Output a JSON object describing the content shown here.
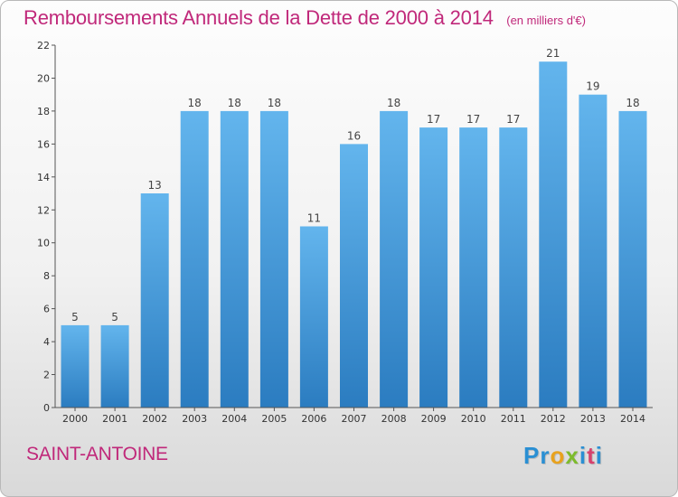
{
  "header": {
    "title": "Remboursements Annuels de la Dette de 2000 à 2014",
    "unit": "(en milliers d'€)"
  },
  "footer": {
    "location": "SAINT-ANTOINE",
    "logo_letters": [
      {
        "char": "P",
        "color": "#2a8fd3"
      },
      {
        "char": "r",
        "color": "#2a8fd3"
      },
      {
        "char": "o",
        "color": "#e8a21e"
      },
      {
        "char": "x",
        "color": "#7dbb2c"
      },
      {
        "char": "i",
        "color": "#2a8fd3"
      },
      {
        "char": "t",
        "color": "#d6426e"
      },
      {
        "char": "i",
        "color": "#2a8fd3"
      }
    ]
  },
  "colors": {
    "accent": "#c0287a",
    "bar_top": "#63b5ed",
    "bar_bottom": "#2b7cc0",
    "axis": "#555555"
  },
  "chart_data": {
    "type": "bar",
    "title": "Remboursements Annuels de la Dette de 2000 à 2014",
    "categories": [
      "2000",
      "2001",
      "2002",
      "2003",
      "2004",
      "2005",
      "2006",
      "2007",
      "2008",
      "2009",
      "2010",
      "2011",
      "2012",
      "2013",
      "2014"
    ],
    "values": [
      5,
      5,
      13,
      18,
      18,
      18,
      11,
      16,
      18,
      17,
      17,
      17,
      21,
      19,
      18
    ],
    "ylim": [
      0,
      22
    ],
    "yticks": [
      0,
      2,
      4,
      6,
      8,
      10,
      12,
      14,
      16,
      18,
      20,
      22
    ],
    "grid": false,
    "data_labels": true
  }
}
